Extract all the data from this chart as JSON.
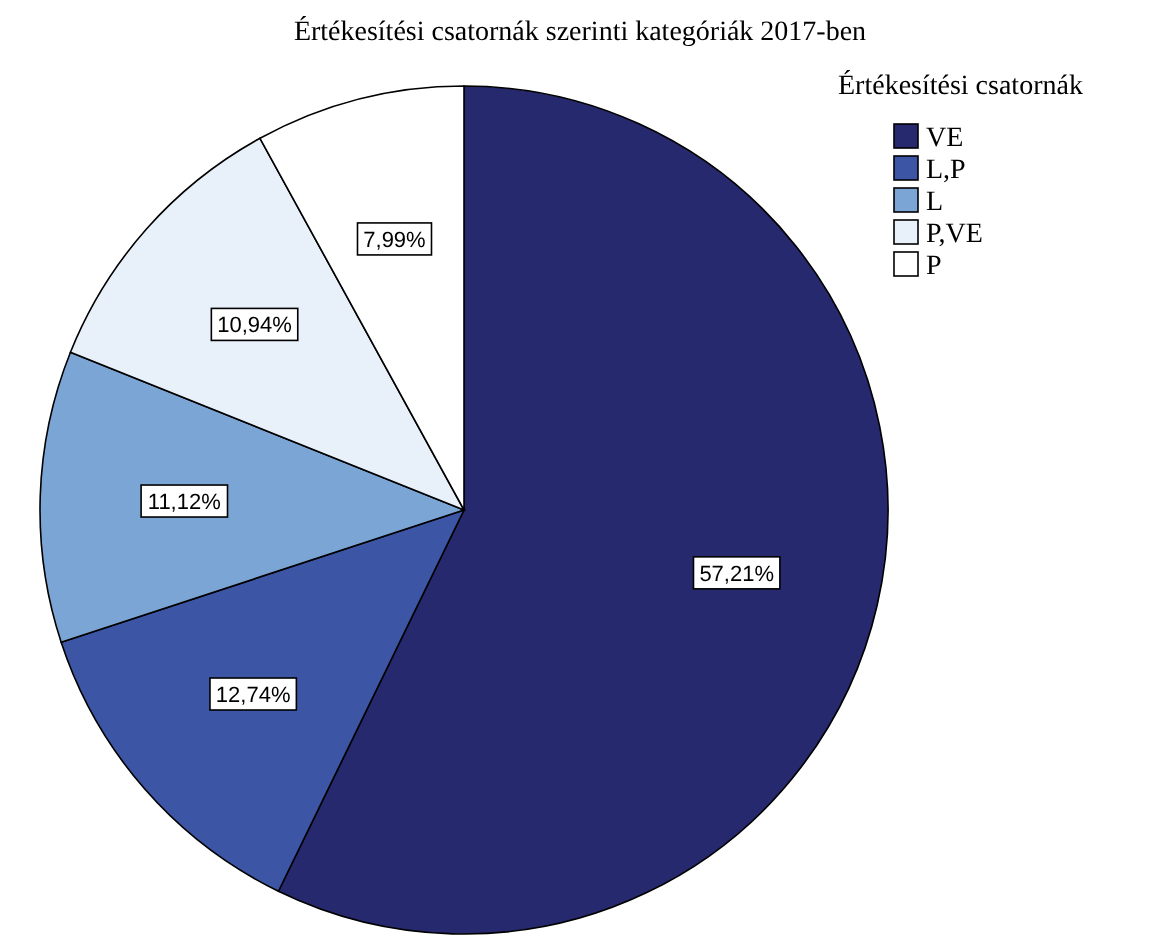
{
  "chart_data": {
    "type": "pie",
    "title": "Értékesítési csatornák szerinti kategóriák 2017-ben",
    "legend_title": "Értékesítési csatornák",
    "legend": "top right",
    "categories": [
      "VE",
      "L,P",
      "L",
      "P,VE",
      "P"
    ],
    "values": [
      57.21,
      12.74,
      11.12,
      10.94,
      7.99
    ],
    "value_labels": [
      "57,21%",
      "12,74%",
      "11,12%",
      "10,94%",
      "7,99%"
    ],
    "colors": [
      "#26296e",
      "#3c55a5",
      "#7ba5d4",
      "#e8f0fa",
      "#ffffff"
    ]
  }
}
